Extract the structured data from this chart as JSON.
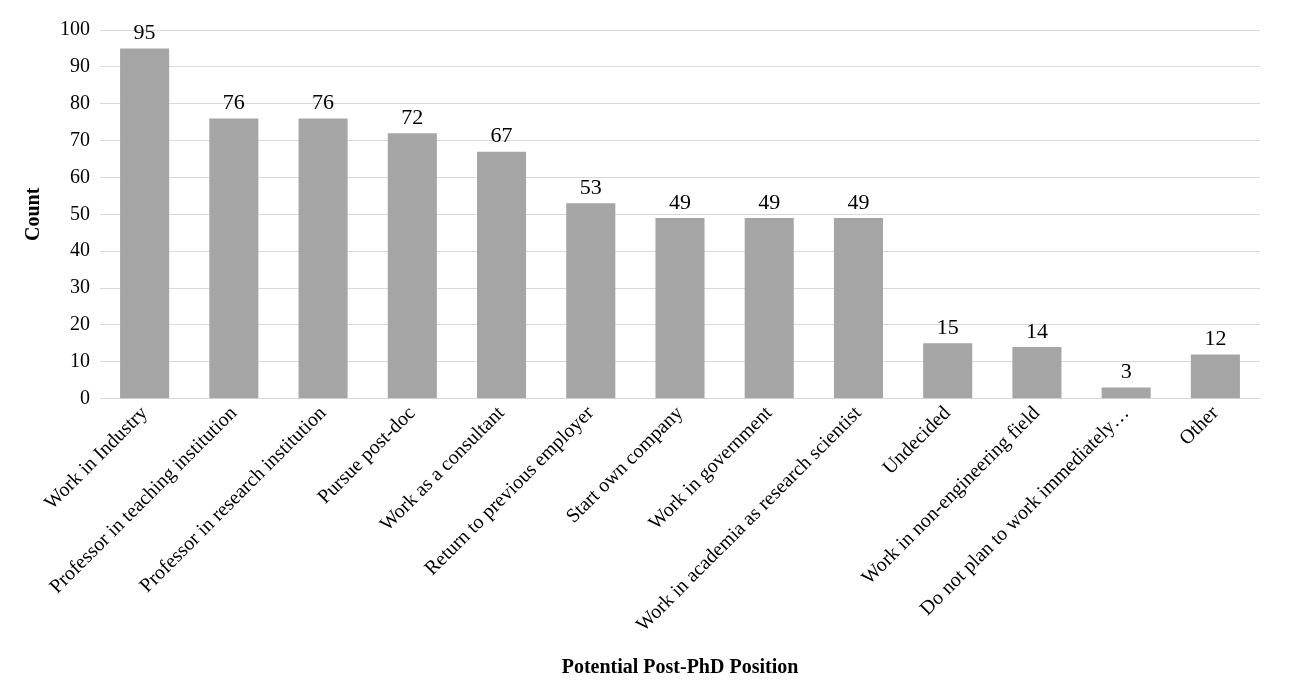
{
  "chart_data": {
    "type": "bar",
    "xlabel": "Potential Post-PhD Position",
    "ylabel": "Count",
    "categories": [
      "Work in Industry",
      "Professor in teaching institution",
      "Professor in research institution",
      "Pursue post-doc",
      "Work as a consultant",
      "Return to previous employer",
      "Start own company",
      "Work in government",
      "Work in academia as research scientist",
      "Undecided",
      "Work in non-engineering field",
      "Do not plan to work immediately…",
      "Other"
    ],
    "values": [
      95,
      76,
      76,
      72,
      67,
      53,
      49,
      49,
      49,
      15,
      14,
      3,
      12
    ],
    "color": "#a5a5a5",
    "ylim": [
      0,
      100
    ],
    "yticks": [
      0,
      10,
      20,
      30,
      40,
      50,
      60,
      70,
      80,
      90,
      100
    ],
    "grid": "y",
    "data_labels": true
  }
}
